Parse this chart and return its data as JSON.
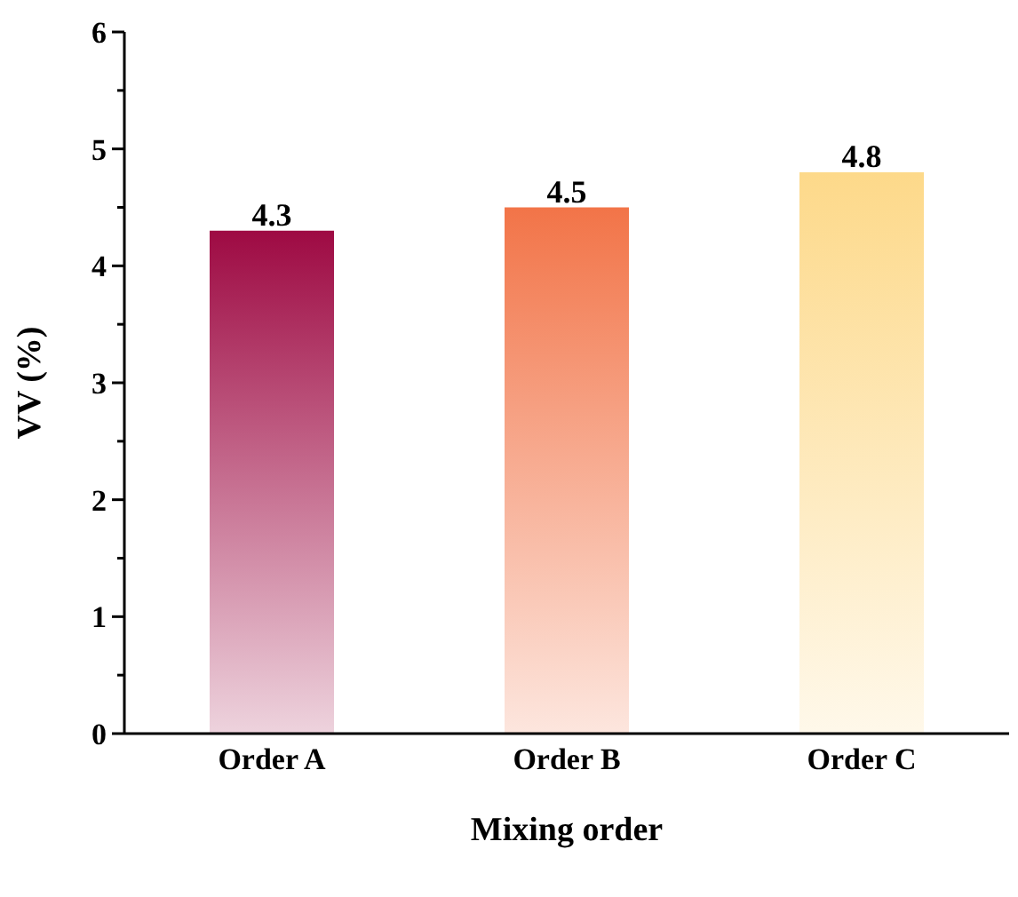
{
  "chart_data": {
    "type": "bar",
    "xlabel": "Mixing order",
    "ylabel": "VV (%)",
    "categories": [
      "Order A",
      "Order B",
      "Order C"
    ],
    "values": [
      4.3,
      4.5,
      4.8
    ],
    "colors": [
      "#9e0a43",
      "#f27448",
      "#fdd98a"
    ],
    "ylim": [
      0,
      6
    ],
    "yticks": [
      0,
      {
        "value": 0.5,
        "label": null
      },
      1,
      {
        "value": 1.5,
        "label": null
      },
      2,
      {
        "value": 2.5,
        "label": null
      },
      3,
      {
        "value": 3.5,
        "label": null
      },
      4,
      {
        "value": 4.5,
        "label": null
      },
      5,
      {
        "value": 5.5,
        "label": null
      },
      6
    ],
    "data_labels": true,
    "grid": false,
    "legend": false
  }
}
